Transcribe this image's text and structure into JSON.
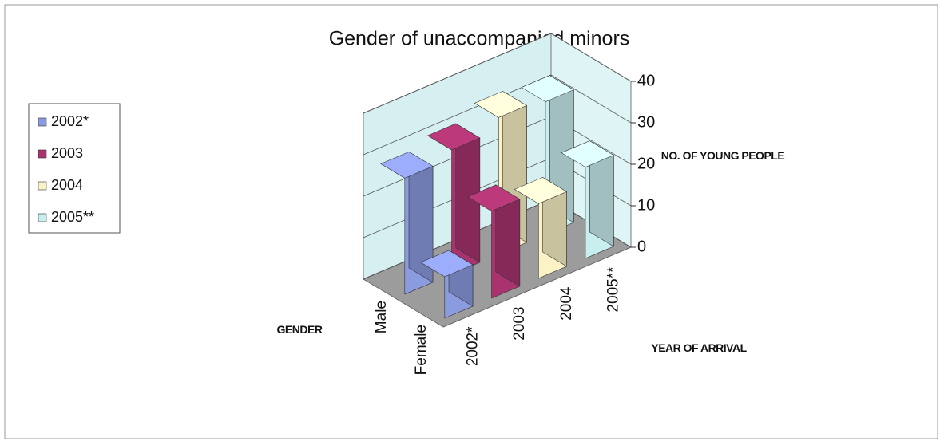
{
  "chart_data": {
    "type": "bar3d",
    "title": "Gender of unaccompanied minors",
    "categories": [
      "Male",
      "Female"
    ],
    "series": [
      {
        "name": "2002*",
        "color": "#8b9be0",
        "values": [
          28,
          10
        ]
      },
      {
        "name": "2003",
        "color": "#a8336f",
        "values": [
          30,
          21
        ]
      },
      {
        "name": "2004",
        "color": "#fbf3c6",
        "values": [
          33,
          18
        ]
      },
      {
        "name": "2005**",
        "color": "#c9eef0",
        "values": [
          32,
          22
        ]
      }
    ],
    "ylim": [
      0,
      40
    ],
    "yticks": [
      0,
      10,
      20,
      30,
      40
    ],
    "y_label": "NO. OF YOUNG PEOPLE",
    "x_label": "YEAR OF ARRIVAL",
    "z_label": "GENDER",
    "legend": "left",
    "grid": true
  }
}
